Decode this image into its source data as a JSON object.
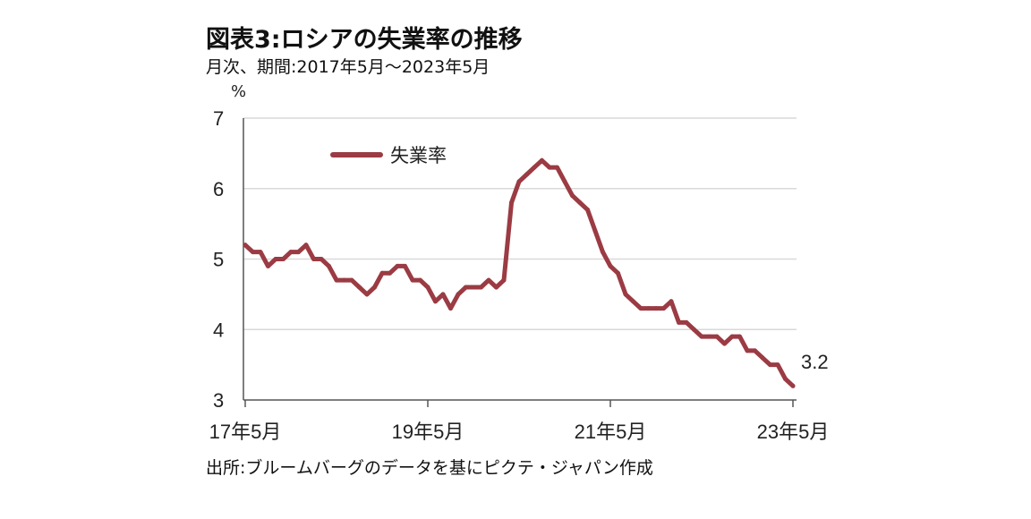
{
  "title": "図表3:ロシアの失業率の推移",
  "subtitle": "月次、期間:2017年5月〜2023年5月",
  "source": "出所:ブルームバーグのデータを基にピクテ・ジャパン作成",
  "colors": {
    "series": "#9b3b43",
    "grid": "#d9d9d9",
    "axis": "#555555"
  },
  "chart_data": {
    "type": "line",
    "ylabel": "%",
    "ylim": [
      3,
      7
    ],
    "yticks": [
      3,
      4,
      5,
      6,
      7
    ],
    "xtick_labels": [
      "17年5月",
      "19年5月",
      "21年5月",
      "23年5月"
    ],
    "xtick_index": [
      0,
      24,
      48,
      72
    ],
    "grid": "horizontal",
    "legend_position": "top-left",
    "end_label": "3.2",
    "series": [
      {
        "name": "失業率",
        "values": [
          5.2,
          5.1,
          5.1,
          4.9,
          5.0,
          5.0,
          5.1,
          5.1,
          5.2,
          5.0,
          5.0,
          4.9,
          4.7,
          4.7,
          4.7,
          4.6,
          4.5,
          4.6,
          4.8,
          4.8,
          4.9,
          4.9,
          4.7,
          4.7,
          4.6,
          4.4,
          4.5,
          4.3,
          4.5,
          4.6,
          4.6,
          4.6,
          4.7,
          4.6,
          4.7,
          5.8,
          6.1,
          6.2,
          6.3,
          6.4,
          6.3,
          6.3,
          6.1,
          5.9,
          5.8,
          5.7,
          5.4,
          5.1,
          4.9,
          4.8,
          4.5,
          4.4,
          4.3,
          4.3,
          4.3,
          4.3,
          4.4,
          4.1,
          4.1,
          4.0,
          3.9,
          3.9,
          3.9,
          3.8,
          3.9,
          3.9,
          3.7,
          3.7,
          3.6,
          3.5,
          3.5,
          3.3,
          3.2
        ]
      }
    ]
  }
}
